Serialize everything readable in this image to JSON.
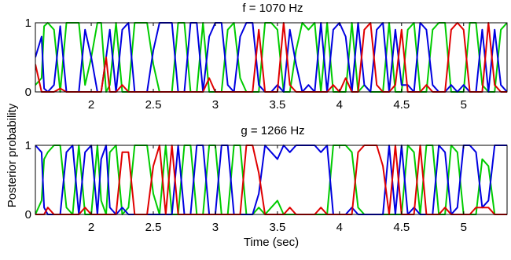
{
  "figure": {
    "ylabel": "Posterior probability",
    "xlabel": "Time (sec)"
  },
  "chart_data": [
    {
      "type": "line",
      "title": "f = 1070 Hz",
      "xlim": [
        1.55,
        5.35
      ],
      "ylim": [
        0,
        1
      ],
      "xticks": [
        2,
        2.5,
        3,
        3.5,
        4,
        4.5,
        5
      ],
      "xtick_labels": [
        "2",
        "2.5",
        "3",
        "3.5",
        "4",
        "4.5",
        "5"
      ],
      "yticks": [
        0,
        1
      ],
      "ytick_labels": [
        "0",
        "1"
      ],
      "grid": false,
      "series": [
        {
          "color": "#00cc00",
          "x": [
            1.55,
            1.6,
            1.62,
            1.65,
            1.7,
            1.75,
            1.8,
            1.85,
            1.9,
            1.95,
            2.0,
            2.05,
            2.08,
            2.12,
            2.15,
            2.2,
            2.25,
            2.3,
            2.35,
            2.4,
            2.45,
            2.5,
            2.55,
            2.6,
            2.65,
            2.7,
            2.75,
            2.8,
            2.85,
            2.9,
            2.95,
            3.0,
            3.05,
            3.1,
            3.15,
            3.2,
            3.25,
            3.3,
            3.35,
            3.4,
            3.45,
            3.5,
            3.55,
            3.6,
            3.65,
            3.7,
            3.75,
            3.8,
            3.85,
            3.9,
            3.95,
            4.0,
            4.05,
            4.1,
            4.15,
            4.2,
            4.25,
            4.3,
            4.35,
            4.4,
            4.45,
            4.5,
            4.55,
            4.6,
            4.65,
            4.7,
            4.75,
            4.8,
            4.85,
            4.9,
            4.95,
            5.0,
            5.05,
            5.1,
            5.15,
            5.2,
            5.25,
            5.3,
            5.35
          ],
          "y": [
            0.1,
            0.2,
            0.95,
            1.0,
            0.9,
            0.0,
            1.0,
            1.0,
            1.0,
            0.1,
            0.5,
            1.0,
            1.0,
            0.0,
            0.1,
            1.0,
            0.0,
            0.0,
            1.0,
            1.0,
            1.0,
            0.4,
            0.0,
            0.0,
            0.0,
            1.0,
            1.0,
            0.0,
            0.0,
            1.0,
            0.0,
            0.0,
            0.0,
            0.9,
            1.0,
            0.2,
            0.0,
            0.0,
            0.0,
            1.0,
            1.0,
            0.9,
            0.0,
            0.0,
            0.6,
            1.0,
            0.9,
            1.0,
            0.0,
            1.0,
            0.0,
            0.0,
            0.0,
            1.0,
            0.0,
            0.1,
            0.0,
            0.0,
            0.0,
            1.0,
            0.0,
            0.0,
            0.9,
            1.0,
            0.0,
            0.0,
            0.9,
            1.0,
            1.0,
            0.0,
            0.0,
            0.0,
            1.0,
            1.0,
            0.1,
            0.0,
            0.0,
            0.9,
            1.0
          ]
        },
        {
          "color": "#0000e0",
          "x": [
            1.55,
            1.6,
            1.62,
            1.65,
            1.7,
            1.75,
            1.8,
            1.85,
            1.9,
            1.95,
            2.0,
            2.05,
            2.08,
            2.12,
            2.15,
            2.2,
            2.25,
            2.3,
            2.35,
            2.4,
            2.45,
            2.5,
            2.55,
            2.6,
            2.65,
            2.7,
            2.75,
            2.8,
            2.85,
            2.9,
            2.95,
            3.0,
            3.05,
            3.1,
            3.15,
            3.2,
            3.25,
            3.3,
            3.35,
            3.4,
            3.45,
            3.5,
            3.55,
            3.6,
            3.65,
            3.7,
            3.75,
            3.8,
            3.85,
            3.9,
            3.95,
            4.0,
            4.05,
            4.1,
            4.15,
            4.2,
            4.25,
            4.3,
            4.35,
            4.4,
            4.45,
            4.5,
            4.55,
            4.6,
            4.65,
            4.7,
            4.75,
            4.8,
            4.85,
            4.9,
            4.95,
            5.0,
            5.05,
            5.1,
            5.15,
            5.2,
            5.25,
            5.3,
            5.35
          ],
          "y": [
            0.5,
            0.8,
            0.05,
            0.0,
            0.1,
            0.95,
            0.0,
            0.0,
            0.0,
            0.9,
            0.5,
            0.0,
            0.0,
            0.5,
            0.9,
            0.0,
            0.9,
            1.0,
            0.0,
            0.0,
            0.0,
            0.6,
            1.0,
            1.0,
            1.0,
            0.0,
            0.0,
            1.0,
            1.0,
            0.0,
            0.8,
            1.0,
            1.0,
            0.1,
            0.0,
            0.8,
            1.0,
            1.0,
            0.1,
            0.0,
            0.0,
            0.1,
            0.0,
            0.9,
            0.4,
            0.0,
            0.1,
            0.0,
            1.0,
            0.0,
            0.9,
            1.0,
            0.8,
            0.0,
            1.0,
            0.1,
            0.0,
            0.9,
            1.0,
            0.0,
            0.9,
            0.1,
            0.1,
            0.0,
            1.0,
            0.9,
            0.1,
            0.0,
            0.0,
            0.1,
            0.0,
            0.1,
            0.0,
            0.0,
            0.9,
            0.0,
            0.9,
            0.1,
            0.0
          ]
        },
        {
          "color": "#e00000",
          "x": [
            1.55,
            1.6,
            1.62,
            1.65,
            1.7,
            1.75,
            1.8,
            1.85,
            1.9,
            1.95,
            2.0,
            2.05,
            2.08,
            2.12,
            2.15,
            2.2,
            2.25,
            2.3,
            2.35,
            2.4,
            2.45,
            2.5,
            2.55,
            2.6,
            2.65,
            2.7,
            2.75,
            2.8,
            2.85,
            2.9,
            2.95,
            3.0,
            3.05,
            3.1,
            3.15,
            3.2,
            3.25,
            3.3,
            3.35,
            3.4,
            3.45,
            3.5,
            3.55,
            3.6,
            3.65,
            3.7,
            3.75,
            3.8,
            3.85,
            3.9,
            3.95,
            4.0,
            4.05,
            4.1,
            4.15,
            4.2,
            4.25,
            4.3,
            4.35,
            4.4,
            4.45,
            4.5,
            4.55,
            4.6,
            4.65,
            4.7,
            4.75,
            4.8,
            4.85,
            4.9,
            4.95,
            5.0,
            5.05,
            5.1,
            5.15,
            5.2,
            5.25,
            5.3,
            5.35
          ],
          "y": [
            0.4,
            0.0,
            0.0,
            0.0,
            0.0,
            0.05,
            0.0,
            0.0,
            0.0,
            0.0,
            0.0,
            0.0,
            0.0,
            0.5,
            0.0,
            0.0,
            0.1,
            0.0,
            0.0,
            0.0,
            0.0,
            0.0,
            0.0,
            0.0,
            0.0,
            0.0,
            0.0,
            0.0,
            0.0,
            0.0,
            0.2,
            0.0,
            0.0,
            0.0,
            0.0,
            0.0,
            0.0,
            0.0,
            0.9,
            0.0,
            0.0,
            0.0,
            1.0,
            0.1,
            0.0,
            0.0,
            0.0,
            0.0,
            0.0,
            0.0,
            0.1,
            0.0,
            0.2,
            0.0,
            0.0,
            0.9,
            1.0,
            0.1,
            0.0,
            0.0,
            0.1,
            0.9,
            0.0,
            0.0,
            0.0,
            0.1,
            0.0,
            0.0,
            0.0,
            0.9,
            1.0,
            0.9,
            0.0,
            0.0,
            0.0,
            1.0,
            0.1,
            0.0,
            0.0
          ]
        }
      ]
    },
    {
      "type": "line",
      "title": "g = 1266 Hz",
      "xlim": [
        1.55,
        5.35
      ],
      "ylim": [
        0,
        1
      ],
      "xticks": [
        2,
        2.5,
        3,
        3.5,
        4,
        4.5,
        5
      ],
      "xtick_labels": [
        "2",
        "2.5",
        "3",
        "3.5",
        "4",
        "4.5",
        "5"
      ],
      "yticks": [
        0,
        1
      ],
      "ytick_labels": [
        "0",
        "1"
      ],
      "grid": false,
      "series": [
        {
          "color": "#00cc00",
          "x": [
            1.55,
            1.6,
            1.62,
            1.65,
            1.7,
            1.75,
            1.8,
            1.85,
            1.9,
            1.95,
            2.0,
            2.05,
            2.08,
            2.12,
            2.15,
            2.2,
            2.25,
            2.3,
            2.35,
            2.4,
            2.45,
            2.5,
            2.55,
            2.6,
            2.65,
            2.7,
            2.75,
            2.8,
            2.85,
            2.9,
            2.95,
            3.0,
            3.05,
            3.1,
            3.15,
            3.2,
            3.25,
            3.3,
            3.35,
            3.4,
            3.45,
            3.5,
            3.55,
            3.6,
            3.65,
            3.7,
            3.75,
            3.8,
            3.85,
            3.9,
            3.95,
            4.0,
            4.05,
            4.1,
            4.15,
            4.2,
            4.25,
            4.3,
            4.35,
            4.4,
            4.45,
            4.5,
            4.55,
            4.6,
            4.65,
            4.7,
            4.75,
            4.8,
            4.85,
            4.9,
            4.95,
            5.0,
            5.05,
            5.1,
            5.15,
            5.2,
            5.25,
            5.3,
            5.35
          ],
          "y": [
            0.0,
            0.2,
            0.8,
            0.9,
            1.0,
            1.0,
            0.1,
            0.0,
            1.0,
            0.0,
            0.0,
            1.0,
            0.2,
            0.0,
            0.9,
            1.0,
            0.0,
            0.1,
            1.0,
            1.0,
            1.0,
            0.3,
            0.0,
            1.0,
            0.0,
            0.0,
            1.0,
            1.0,
            0.0,
            0.0,
            1.0,
            1.0,
            0.0,
            0.0,
            1.0,
            1.0,
            0.0,
            0.0,
            0.1,
            0.0,
            0.1,
            0.2,
            0.0,
            0.0,
            0.0,
            0.0,
            0.0,
            0.0,
            0.0,
            0.0,
            1.0,
            1.0,
            1.0,
            0.9,
            0.1,
            0.0,
            0.0,
            0.0,
            0.0,
            0.0,
            0.0,
            0.0,
            1.0,
            0.9,
            0.0,
            1.0,
            1.0,
            0.0,
            0.0,
            1.0,
            0.9,
            0.0,
            0.0,
            0.0,
            0.8,
            0.7,
            0.0,
            0.0,
            0.0
          ]
        },
        {
          "color": "#0000e0",
          "x": [
            1.55,
            1.6,
            1.62,
            1.65,
            1.7,
            1.75,
            1.8,
            1.85,
            1.9,
            1.95,
            2.0,
            2.05,
            2.08,
            2.12,
            2.15,
            2.2,
            2.25,
            2.3,
            2.35,
            2.4,
            2.45,
            2.5,
            2.55,
            2.6,
            2.65,
            2.7,
            2.75,
            2.8,
            2.85,
            2.9,
            2.95,
            3.0,
            3.05,
            3.1,
            3.15,
            3.2,
            3.25,
            3.3,
            3.35,
            3.4,
            3.45,
            3.5,
            3.55,
            3.6,
            3.65,
            3.7,
            3.75,
            3.8,
            3.85,
            3.9,
            3.95,
            4.0,
            4.05,
            4.1,
            4.15,
            4.2,
            4.25,
            4.3,
            4.35,
            4.4,
            4.45,
            4.5,
            4.55,
            4.6,
            4.65,
            4.7,
            4.75,
            4.8,
            4.85,
            4.9,
            4.95,
            5.0,
            5.05,
            5.1,
            5.15,
            5.2,
            5.25,
            5.3,
            5.35
          ],
          "y": [
            1.0,
            0.9,
            0.1,
            0.0,
            0.0,
            0.0,
            0.9,
            1.0,
            0.0,
            0.9,
            1.0,
            0.0,
            0.8,
            1.0,
            0.1,
            0.0,
            0.1,
            0.0,
            0.0,
            0.0,
            0.0,
            0.0,
            0.0,
            0.0,
            0.0,
            1.0,
            0.0,
            0.0,
            1.0,
            1.0,
            0.0,
            0.0,
            1.0,
            1.0,
            0.0,
            0.0,
            0.0,
            0.0,
            0.3,
            1.0,
            0.9,
            0.8,
            1.0,
            0.9,
            1.0,
            1.0,
            1.0,
            1.0,
            0.9,
            1.0,
            0.0,
            0.0,
            0.0,
            0.1,
            0.0,
            0.0,
            0.0,
            0.0,
            0.0,
            1.0,
            0.0,
            1.0,
            0.0,
            0.1,
            0.0,
            0.0,
            0.0,
            1.0,
            0.9,
            0.0,
            0.1,
            1.0,
            1.0,
            0.9,
            0.1,
            0.2,
            1.0,
            1.0,
            1.0
          ]
        },
        {
          "color": "#e00000",
          "x": [
            1.55,
            1.6,
            1.62,
            1.65,
            1.7,
            1.75,
            1.8,
            1.85,
            1.9,
            1.95,
            2.0,
            2.05,
            2.08,
            2.12,
            2.15,
            2.2,
            2.25,
            2.3,
            2.35,
            2.4,
            2.45,
            2.5,
            2.55,
            2.6,
            2.65,
            2.7,
            2.75,
            2.8,
            2.85,
            2.9,
            2.95,
            3.0,
            3.05,
            3.1,
            3.15,
            3.2,
            3.25,
            3.3,
            3.35,
            3.4,
            3.45,
            3.5,
            3.55,
            3.6,
            3.65,
            3.7,
            3.75,
            3.8,
            3.85,
            3.9,
            3.95,
            4.0,
            4.05,
            4.1,
            4.15,
            4.2,
            4.25,
            4.3,
            4.35,
            4.4,
            4.45,
            4.5,
            4.55,
            4.6,
            4.65,
            4.7,
            4.75,
            4.8,
            4.85,
            4.9,
            4.95,
            5.0,
            5.05,
            5.1,
            5.15,
            5.2,
            5.25,
            5.3,
            5.35
          ],
          "y": [
            0.0,
            0.0,
            0.0,
            0.1,
            0.0,
            0.0,
            0.0,
            0.0,
            0.0,
            0.1,
            0.0,
            0.0,
            0.0,
            0.0,
            0.0,
            0.0,
            0.9,
            0.9,
            0.0,
            0.0,
            0.0,
            0.7,
            1.0,
            0.0,
            1.0,
            0.0,
            0.0,
            0.0,
            0.0,
            0.0,
            0.0,
            0.0,
            0.0,
            0.0,
            0.0,
            0.0,
            1.0,
            1.0,
            0.6,
            0.0,
            0.0,
            0.0,
            0.0,
            0.1,
            0.0,
            0.0,
            0.0,
            0.0,
            0.1,
            0.0,
            0.0,
            0.0,
            0.0,
            0.0,
            0.9,
            1.0,
            1.0,
            1.0,
            0.7,
            0.0,
            1.0,
            0.0,
            0.0,
            0.0,
            1.0,
            0.0,
            0.0,
            0.0,
            0.1,
            0.0,
            0.0,
            0.0,
            0.0,
            0.1,
            0.1,
            0.1,
            0.0,
            0.0,
            0.0
          ]
        }
      ]
    }
  ]
}
